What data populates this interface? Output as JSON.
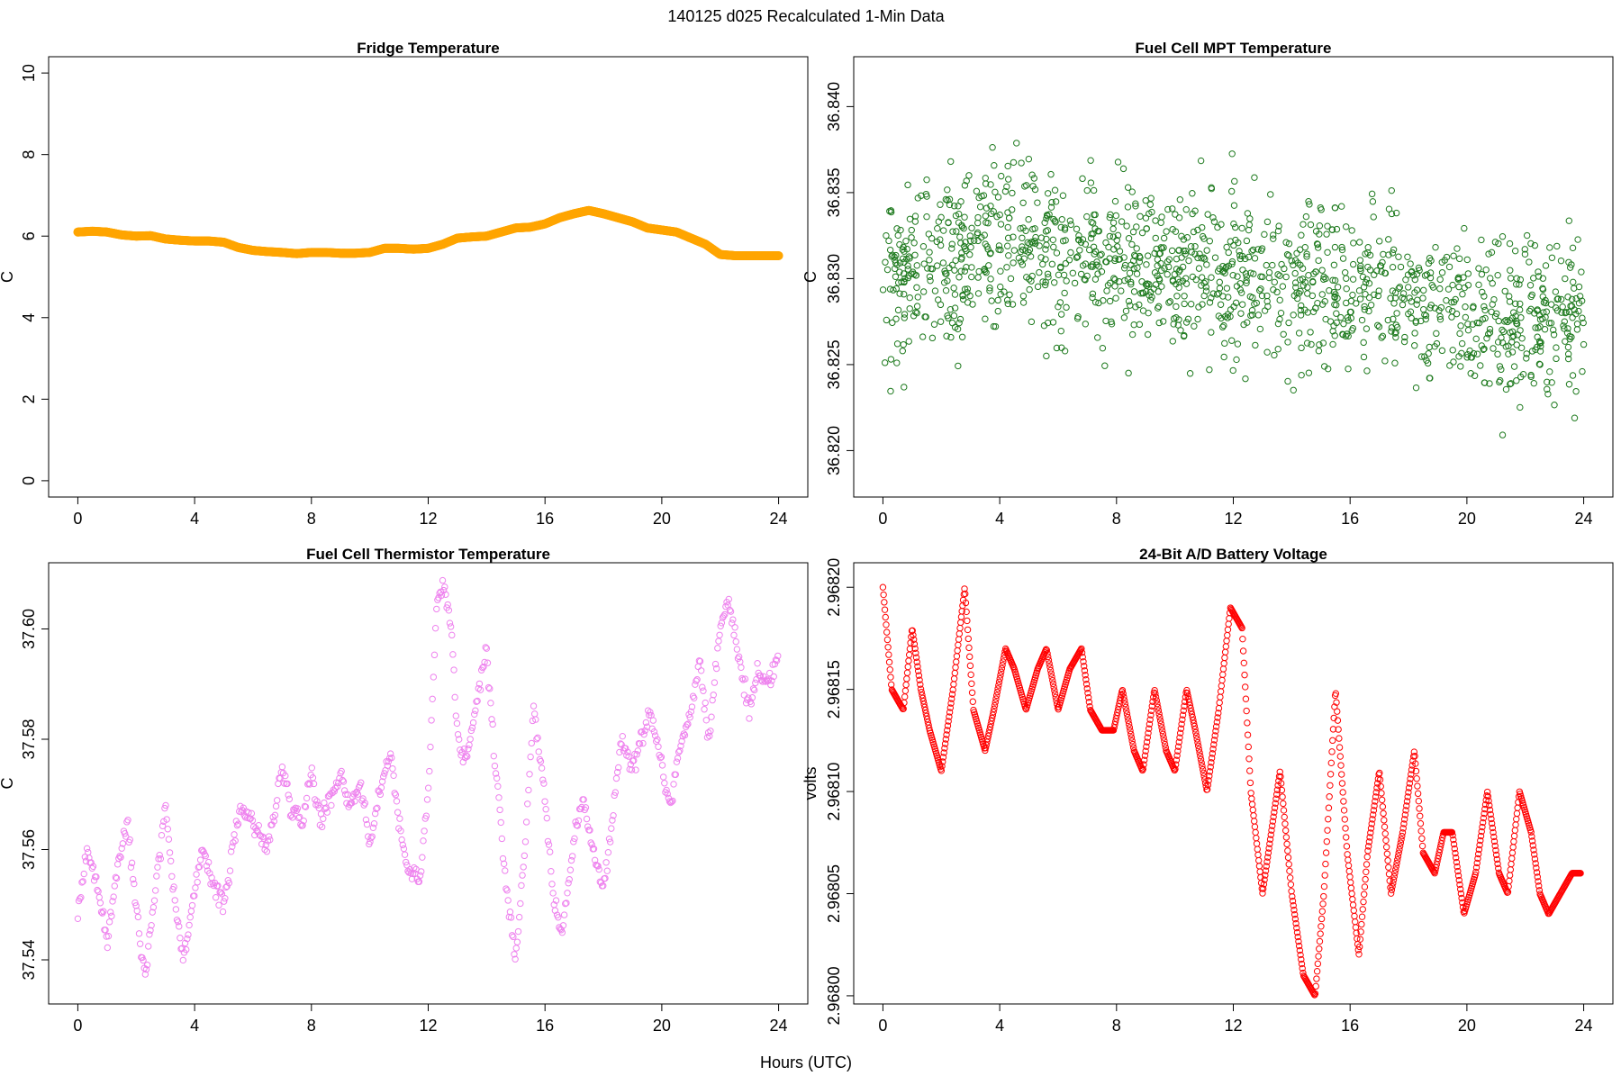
{
  "figure": {
    "title": "140125    d025    Recalculated 1-Min Data",
    "xlabel_common": "Hours (UTC)"
  },
  "chart_data": [
    {
      "id": "fridge",
      "type": "scatter",
      "title": "Fridge Temperature",
      "ylabel": "C",
      "xlabel": "",
      "color": "#FFA500",
      "marker": "filled-dense",
      "x_ticks": [
        0,
        4,
        8,
        12,
        16,
        20,
        24
      ],
      "y_ticks": [
        0,
        2,
        4,
        6,
        8,
        10
      ],
      "y_tick_labels": [
        "0",
        "2",
        "4",
        "6",
        "8",
        "10"
      ],
      "xlim": [
        -1,
        25
      ],
      "ylim": [
        -0.4,
        10.4
      ],
      "x": [
        0,
        0.5,
        1,
        1.5,
        2,
        2.5,
        3,
        3.5,
        4,
        4.5,
        5,
        5.5,
        6,
        6.5,
        7,
        7.5,
        8,
        8.5,
        9,
        9.5,
        10,
        10.5,
        11,
        11.5,
        12,
        12.5,
        13,
        13.5,
        14,
        14.5,
        15,
        15.5,
        16,
        16.5,
        17,
        17.5,
        18,
        18.5,
        19,
        19.5,
        20,
        20.5,
        21,
        21.5,
        22,
        22.5,
        23,
        23.5,
        24
      ],
      "values": [
        6.1,
        6.12,
        6.1,
        6.03,
        6.0,
        6.01,
        5.93,
        5.9,
        5.88,
        5.88,
        5.85,
        5.72,
        5.65,
        5.62,
        5.6,
        5.57,
        5.6,
        5.6,
        5.58,
        5.58,
        5.6,
        5.7,
        5.7,
        5.68,
        5.7,
        5.8,
        5.95,
        5.98,
        6.0,
        6.1,
        6.2,
        6.22,
        6.3,
        6.45,
        6.55,
        6.63,
        6.55,
        6.45,
        6.35,
        6.2,
        6.15,
        6.1,
        5.95,
        5.8,
        5.55,
        5.52,
        5.52,
        5.52,
        5.52
      ]
    },
    {
      "id": "mpt",
      "type": "scatter",
      "title": "Fuel Cell MPT Temperature",
      "ylabel": "C",
      "xlabel": "",
      "color": "#1E7A1E",
      "marker": "open-circle",
      "x_ticks": [
        0,
        4,
        8,
        12,
        16,
        20,
        24
      ],
      "y_ticks": [
        36.82,
        36.825,
        36.83,
        36.835,
        36.84
      ],
      "y_tick_labels": [
        "36.820",
        "36.825",
        "36.830",
        "36.835",
        "36.840"
      ],
      "xlim": [
        -1,
        25
      ],
      "ylim": [
        36.8173,
        36.8429
      ],
      "trend_x": [
        0,
        2,
        4,
        6,
        8,
        10,
        12,
        14,
        16,
        18,
        20,
        22,
        24
      ],
      "trend_mean": [
        36.83,
        36.831,
        36.8325,
        36.8315,
        36.831,
        36.8305,
        36.83,
        36.8295,
        36.8298,
        36.829,
        36.828,
        36.8275,
        36.8275
      ],
      "spread": 0.0065,
      "n_points": 1400
    },
    {
      "id": "thermistor",
      "type": "scatter",
      "title": "Fuel Cell Thermistor Temperature",
      "ylabel": "C",
      "xlabel": "",
      "color": "#EE82EE",
      "marker": "open-circle",
      "x_ticks": [
        0,
        4,
        8,
        12,
        16,
        20,
        24
      ],
      "y_ticks": [
        37.54,
        37.56,
        37.58,
        37.6
      ],
      "y_tick_labels": [
        "37.54",
        "37.56",
        "37.58",
        "37.60"
      ],
      "xlim": [
        -1,
        25
      ],
      "ylim": [
        37.532,
        37.612
      ],
      "x": [
        0,
        0.3,
        0.6,
        1,
        1.3,
        1.7,
        2,
        2.3,
        2.7,
        3,
        3.3,
        3.6,
        4,
        4.3,
        4.7,
        5,
        5.3,
        5.6,
        6,
        6.5,
        7,
        7.3,
        7.7,
        8,
        8.3,
        8.7,
        9,
        9.3,
        9.7,
        10,
        10.3,
        10.7,
        11,
        11.3,
        11.7,
        12,
        12.3,
        12.5,
        12.8,
        13,
        13.3,
        13.7,
        14,
        14.3,
        14.7,
        15,
        15.3,
        15.6,
        16,
        16.3,
        16.6,
        17,
        17.3,
        17.6,
        18,
        18.3,
        18.6,
        19,
        19.3,
        19.6,
        20,
        20.3,
        20.6,
        21,
        21.3,
        21.6,
        22,
        22.3,
        22.6,
        23,
        23.3,
        23.6,
        24
      ],
      "values": [
        37.548,
        37.56,
        37.555,
        37.543,
        37.555,
        37.565,
        37.55,
        37.537,
        37.555,
        37.568,
        37.552,
        37.54,
        37.552,
        37.56,
        37.553,
        37.55,
        37.56,
        37.568,
        37.565,
        37.56,
        37.575,
        37.568,
        37.565,
        37.575,
        37.565,
        37.57,
        37.574,
        37.568,
        37.572,
        37.56,
        37.57,
        37.578,
        37.565,
        37.556,
        37.555,
        37.57,
        37.605,
        37.608,
        37.6,
        37.58,
        37.575,
        37.588,
        37.596,
        37.575,
        37.552,
        37.54,
        37.56,
        37.585,
        37.57,
        37.55,
        37.545,
        37.562,
        37.57,
        37.56,
        37.553,
        37.565,
        37.58,
        37.575,
        37.58,
        37.585,
        37.575,
        37.568,
        37.578,
        37.585,
        37.595,
        37.58,
        37.6,
        37.606,
        37.595,
        37.585,
        37.592,
        37.59,
        37.595
      ]
    },
    {
      "id": "battery",
      "type": "scatter",
      "title": "24-Bit A/D Battery Voltage",
      "ylabel": "volts",
      "xlabel": "",
      "color": "#FF0000",
      "marker": "open-circle",
      "x_ticks": [
        0,
        4,
        8,
        12,
        16,
        20,
        24
      ],
      "y_ticks": [
        2.968,
        2.96805,
        2.9681,
        2.96815,
        2.9682
      ],
      "y_tick_labels": [
        "2.96800",
        "2.96805",
        "2.96810",
        "2.96815",
        "2.96820"
      ],
      "xlim": [
        -1,
        25
      ],
      "ylim": [
        2.967996,
        2.968212
      ],
      "x": [
        0,
        0.3,
        0.7,
        1,
        1.3,
        1.6,
        2,
        2.4,
        2.8,
        3.1,
        3.5,
        3.8,
        4.2,
        4.5,
        4.9,
        5.3,
        5.6,
        6,
        6.4,
        6.8,
        7.1,
        7.5,
        7.9,
        8.2,
        8.6,
        8.9,
        9.3,
        9.7,
        10,
        10.4,
        10.7,
        11.1,
        11.5,
        11.9,
        12.3,
        12.6,
        13,
        13.3,
        13.6,
        14,
        14.4,
        14.8,
        15.1,
        15.5,
        15.9,
        16.3,
        16.6,
        17,
        17.4,
        17.8,
        18.2,
        18.5,
        18.9,
        19.2,
        19.5,
        19.9,
        20.3,
        20.7,
        21.1,
        21.4,
        21.8,
        22.2,
        22.5,
        22.8,
        23.2,
        23.6,
        24
      ],
      "values": [
        2.9682,
        2.96815,
        2.96814,
        2.96818,
        2.96815,
        2.96813,
        2.96811,
        2.96815,
        2.9682,
        2.96814,
        2.96812,
        2.96814,
        2.96817,
        2.96816,
        2.96814,
        2.96816,
        2.96817,
        2.96814,
        2.96816,
        2.96817,
        2.96814,
        2.96813,
        2.96813,
        2.96815,
        2.96812,
        2.96811,
        2.96815,
        2.96812,
        2.96811,
        2.96815,
        2.96813,
        2.9681,
        2.96814,
        2.96819,
        2.96818,
        2.9681,
        2.96805,
        2.96808,
        2.96811,
        2.96805,
        2.96801,
        2.968,
        2.96805,
        2.96815,
        2.96807,
        2.96802,
        2.96807,
        2.96811,
        2.96805,
        2.96808,
        2.96812,
        2.96807,
        2.96806,
        2.96808,
        2.96808,
        2.96804,
        2.96806,
        2.9681,
        2.96806,
        2.96805,
        2.9681,
        2.96808,
        2.96805,
        2.96804,
        2.96805,
        2.96806,
        2.96806
      ]
    }
  ]
}
